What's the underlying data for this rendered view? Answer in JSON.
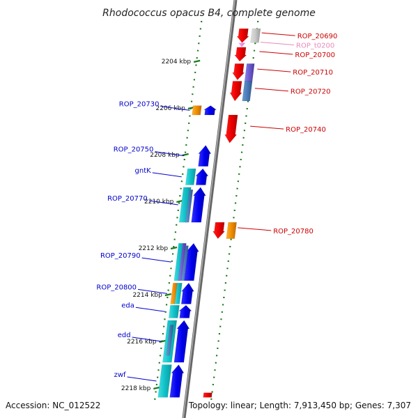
{
  "title": "Rhodococcus opacus B4, complete genome",
  "footer": {
    "accession": "Accession: NC_012522",
    "summary": "Topology: linear; Length: 7,913,450 bp; Genes: 7,307"
  },
  "colors": {
    "forward_label": "#0000cc",
    "reverse_label": "#cc0000",
    "rna_label": "#e58ab8",
    "tick": "#1a7a1a",
    "backbone": "#888888"
  },
  "scale": [
    {
      "label": "2204 kbp",
      "kbp": 2204
    },
    {
      "label": "2206 kbp",
      "kbp": 2206
    },
    {
      "label": "2208 kbp",
      "kbp": 2208
    },
    {
      "label": "2210 kbp",
      "kbp": 2210
    },
    {
      "label": "2212 kbp",
      "kbp": 2212
    },
    {
      "label": "2214 kbp",
      "kbp": 2214
    },
    {
      "label": "2216 kbp",
      "kbp": 2216
    },
    {
      "label": "2218 kbp",
      "kbp": 2218
    }
  ],
  "genes": [
    {
      "name": "ROP_20690",
      "strand": "reverse",
      "type": "gene",
      "start": 2202.6,
      "end": 2203.2
    },
    {
      "name": "ROP_t0200",
      "strand": "reverse",
      "type": "rna",
      "start": 2203.25,
      "end": 2203.35
    },
    {
      "name": "ROP_20700",
      "strand": "reverse",
      "type": "gene",
      "start": 2203.4,
      "end": 2204.0
    },
    {
      "name": "ROP_20710",
      "strand": "reverse",
      "type": "gene",
      "start": 2204.1,
      "end": 2204.8
    },
    {
      "name": "ROP_20720",
      "strand": "reverse",
      "type": "gene",
      "start": 2204.85,
      "end": 2205.7
    },
    {
      "name": "ROP_20730",
      "strand": "forward",
      "type": "gene",
      "start": 2205.9,
      "end": 2206.3
    },
    {
      "name": "ROP_20740",
      "strand": "reverse",
      "type": "gene",
      "start": 2206.3,
      "end": 2207.5
    },
    {
      "name": "ROP_20750",
      "strand": "forward",
      "type": "gene",
      "start": 2207.6,
      "end": 2208.5
    },
    {
      "name": "gntK",
      "strand": "forward",
      "type": "gene",
      "start": 2208.6,
      "end": 2209.3
    },
    {
      "name": "ROP_20770",
      "strand": "forward",
      "type": "gene",
      "start": 2209.4,
      "end": 2210.9
    },
    {
      "name": "ROP_20780",
      "strand": "reverse",
      "type": "gene",
      "start": 2210.9,
      "end": 2211.6
    },
    {
      "name": "ROP_20790",
      "strand": "forward",
      "type": "gene",
      "start": 2211.8,
      "end": 2213.4
    },
    {
      "name": "ROP_20800",
      "strand": "forward",
      "type": "gene",
      "start": 2213.5,
      "end": 2214.4
    },
    {
      "name": "eda",
      "strand": "forward",
      "type": "gene",
      "start": 2214.45,
      "end": 2215.0
    },
    {
      "name": "edd",
      "strand": "forward",
      "type": "gene",
      "start": 2215.1,
      "end": 2216.9
    },
    {
      "name": "zwf",
      "strand": "forward",
      "type": "gene",
      "start": 2217.0,
      "end": 2218.4
    }
  ]
}
